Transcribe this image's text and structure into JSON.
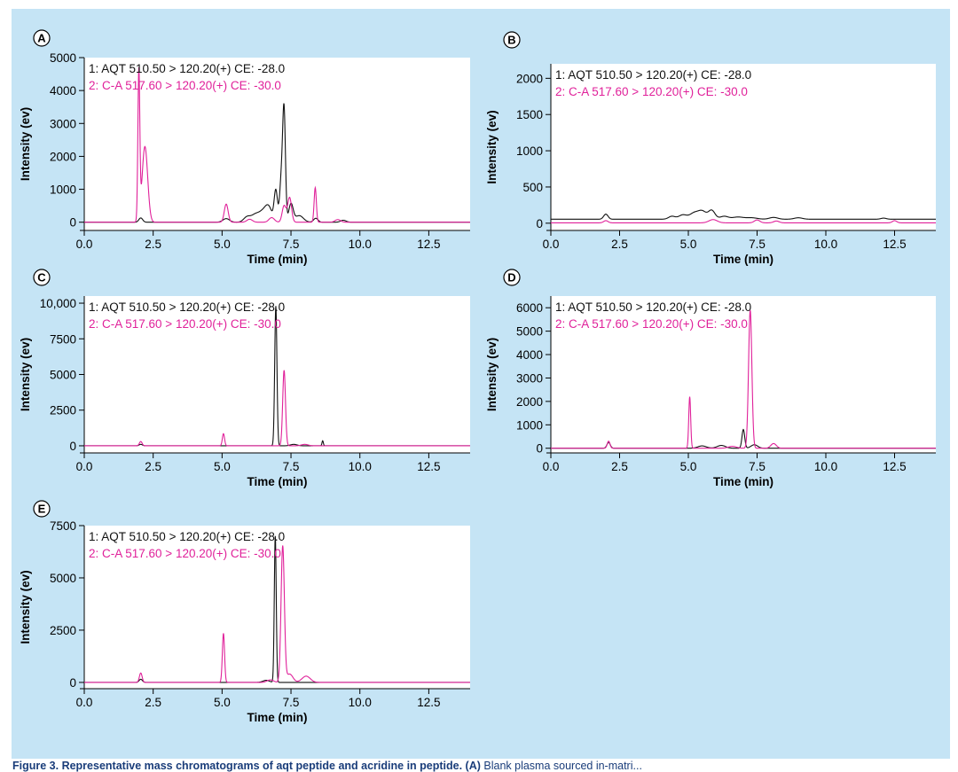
{
  "colors": {
    "background": "#c5e4f5",
    "plot_area": "#ffffff",
    "aqt_trace": "#111111",
    "ca_trace": "#e0219a",
    "caption": "#1a3d7a"
  },
  "caption": {
    "bold": "Figure 3. Representative mass chromatograms of aqt peptide and acridine in peptide. (A)",
    "rest": " Blank plasma sourced in-matri..."
  },
  "chart_data": [
    {
      "type": "line",
      "panel": "A",
      "xlabel": "Time (min)",
      "ylabel": "Intensity (ev)",
      "xlim": [
        0,
        14
      ],
      "ylim": [
        -250,
        5000
      ],
      "xticks": [
        0,
        2.5,
        5,
        7.5,
        10,
        12.5
      ],
      "xtick_labels": [
        "0.0",
        "2.5",
        "5.0",
        "7.5",
        "10.0",
        "12.5"
      ],
      "yticks": [
        0,
        1000,
        2000,
        3000,
        4000,
        5000
      ],
      "ytick_labels": [
        "0",
        "1000",
        "2000",
        "3000",
        "4000",
        "5000"
      ],
      "legend": [
        "1: AQT 510.50 > 120.20(+) CE: -28.0",
        "2: C-A 517.60 > 120.20(+) CE: -30.0"
      ],
      "series": [
        {
          "name": "AQT 510.50 > 120.20",
          "color": "#111111",
          "baseline": 0,
          "peaks": [
            [
              2.05,
              130,
              0.07
            ],
            [
              5.15,
              110,
              0.12
            ],
            [
              5.9,
              150,
              0.12
            ],
            [
              6.2,
              220,
              0.15
            ],
            [
              6.5,
              300,
              0.15
            ],
            [
              6.7,
              380,
              0.12
            ],
            [
              6.95,
              950,
              0.06
            ],
            [
              7.15,
              1300,
              0.06
            ],
            [
              7.25,
              3250,
              0.05
            ],
            [
              7.5,
              550,
              0.08
            ],
            [
              7.8,
              200,
              0.15
            ],
            [
              8.4,
              120,
              0.08
            ],
            [
              9.4,
              60,
              0.1
            ]
          ]
        },
        {
          "name": "C-A 517.60 > 120.20",
          "color": "#e0219a",
          "baseline": 0,
          "peaks": [
            [
              1.98,
              4500,
              0.035
            ],
            [
              2.2,
              2300,
              0.1
            ],
            [
              5.15,
              550,
              0.07
            ],
            [
              6.0,
              90,
              0.1
            ],
            [
              6.8,
              140,
              0.1
            ],
            [
              7.25,
              500,
              0.07
            ],
            [
              7.45,
              750,
              0.07
            ],
            [
              8.38,
              1050,
              0.04
            ],
            [
              9.2,
              80,
              0.1
            ]
          ]
        }
      ]
    },
    {
      "type": "line",
      "panel": "B",
      "xlabel": "Time (min)",
      "ylabel": "Intensity (ev)",
      "xlim": [
        0,
        14
      ],
      "ylim": [
        -100,
        2200
      ],
      "xticks": [
        0,
        2.5,
        5,
        7.5,
        10,
        12.5
      ],
      "xtick_labels": [
        "0.0",
        "2.5",
        "5.0",
        "7.5",
        "10.0",
        "12.5"
      ],
      "yticks": [
        0,
        500,
        1000,
        1500,
        2000
      ],
      "ytick_labels": [
        "0",
        "500",
        "1000",
        "1500",
        "2000"
      ],
      "legend": [
        "1: AQT 510.50 > 120.20(+) CE: -28.0",
        "2: C-A 517.60 > 120.20(+) CE: -30.0"
      ],
      "series": [
        {
          "name": "AQT 510.50 > 120.20",
          "color": "#111111",
          "baseline": 55,
          "peaks": [
            [
              2.0,
              70,
              0.08
            ],
            [
              4.4,
              40,
              0.12
            ],
            [
              4.8,
              60,
              0.15
            ],
            [
              5.2,
              80,
              0.15
            ],
            [
              5.5,
              110,
              0.15
            ],
            [
              5.85,
              120,
              0.12
            ],
            [
              6.3,
              40,
              0.15
            ],
            [
              6.8,
              30,
              0.2
            ],
            [
              7.3,
              20,
              0.2
            ],
            [
              8.1,
              25,
              0.15
            ],
            [
              9.0,
              20,
              0.15
            ],
            [
              12.1,
              15,
              0.1
            ]
          ]
        },
        {
          "name": "C-A 517.60 > 120.20",
          "color": "#e0219a",
          "baseline": 5,
          "peaks": [
            [
              2.0,
              30,
              0.08
            ],
            [
              5.9,
              45,
              0.15
            ],
            [
              7.5,
              40,
              0.1
            ],
            [
              8.2,
              25,
              0.1
            ],
            [
              12.5,
              30,
              0.08
            ]
          ]
        }
      ]
    },
    {
      "type": "line",
      "panel": "C",
      "xlabel": "Time (min)",
      "ylabel": "Intensity (ev)",
      "xlim": [
        0,
        14
      ],
      "ylim": [
        -500,
        10500
      ],
      "xticks": [
        0,
        2.5,
        5,
        7.5,
        10,
        12.5
      ],
      "xtick_labels": [
        "0.0",
        "2.5",
        "5.0",
        "7.5",
        "10.0",
        "12.5"
      ],
      "yticks": [
        0,
        2500,
        5000,
        7500,
        10000
      ],
      "ytick_labels": [
        "0",
        "2500",
        "5000",
        "7500",
        "10,000"
      ],
      "legend": [
        "1: AQT 510.50 > 120.20(+) CE: -28.0",
        "2: C-A 517.60 > 120.20(+) CE: -30.0"
      ],
      "series": [
        {
          "name": "AQT 510.50 > 120.20",
          "color": "#111111",
          "baseline": 0,
          "peaks": [
            [
              2.05,
              100,
              0.06
            ],
            [
              6.95,
              9800,
              0.04
            ],
            [
              7.6,
              100,
              0.12
            ],
            [
              8.65,
              350,
              0.025
            ]
          ]
        },
        {
          "name": "C-A 517.60 > 120.20",
          "color": "#e0219a",
          "baseline": 0,
          "peaks": [
            [
              2.05,
              300,
              0.05
            ],
            [
              5.05,
              850,
              0.04
            ],
            [
              7.25,
              5300,
              0.05
            ],
            [
              8.0,
              100,
              0.12
            ]
          ]
        }
      ]
    },
    {
      "type": "line",
      "panel": "D",
      "xlabel": "Time (min)",
      "ylabel": "Intensity (ev)",
      "xlim": [
        0,
        14
      ],
      "ylim": [
        -200,
        6500
      ],
      "xticks": [
        0,
        2.5,
        5,
        7.5,
        10,
        12.5
      ],
      "xtick_labels": [
        "0.0",
        "2.5",
        "5.0",
        "7.5",
        "10.0",
        "12.5"
      ],
      "yticks": [
        0,
        1000,
        2000,
        3000,
        4000,
        5000,
        6000
      ],
      "ytick_labels": [
        "0",
        "1000",
        "2000",
        "3000",
        "4000",
        "5000",
        "6000"
      ],
      "legend": [
        "1: AQT 510.50 > 120.20(+) CE: -28.0",
        "2: C-A 517.60 > 120.20(+) CE: -30.0"
      ],
      "series": [
        {
          "name": "AQT 510.50 > 120.20",
          "color": "#111111",
          "baseline": 0,
          "peaks": [
            [
              2.1,
              250,
              0.06
            ],
            [
              5.5,
              100,
              0.15
            ],
            [
              6.2,
              120,
              0.15
            ],
            [
              7.0,
              800,
              0.05
            ],
            [
              7.4,
              150,
              0.12
            ]
          ]
        },
        {
          "name": "C-A 517.60 > 120.20",
          "color": "#e0219a",
          "baseline": 0,
          "peaks": [
            [
              2.1,
              300,
              0.05
            ],
            [
              5.05,
              2200,
              0.035
            ],
            [
              6.6,
              80,
              0.15
            ],
            [
              7.25,
              5900,
              0.06
            ],
            [
              8.1,
              200,
              0.1
            ]
          ]
        }
      ]
    },
    {
      "type": "line",
      "panel": "E",
      "xlabel": "Time (min)",
      "ylabel": "Intensity (ev)",
      "xlim": [
        0,
        14
      ],
      "ylim": [
        -300,
        7500
      ],
      "xticks": [
        0,
        2.5,
        5,
        7.5,
        10,
        12.5
      ],
      "xtick_labels": [
        "0.0",
        "2.5",
        "5.0",
        "7.5",
        "10.0",
        "12.5"
      ],
      "yticks": [
        0,
        2500,
        5000,
        7500
      ],
      "ytick_labels": [
        "0",
        "2500",
        "5000",
        "7500"
      ],
      "legend": [
        "1: AQT 510.50 > 120.20(+) CE: -28.0",
        "2: C-A 517.60 > 120.20(+) CE: -30.0"
      ],
      "series": [
        {
          "name": "AQT 510.50 > 120.20",
          "color": "#111111",
          "baseline": 0,
          "peaks": [
            [
              2.05,
              150,
              0.06
            ],
            [
              6.93,
              7000,
              0.035
            ],
            [
              6.6,
              100,
              0.12
            ]
          ]
        },
        {
          "name": "C-A 517.60 > 120.20",
          "color": "#e0219a",
          "baseline": 0,
          "peaks": [
            [
              2.05,
              450,
              0.05
            ],
            [
              5.05,
              2350,
              0.04
            ],
            [
              6.75,
              120,
              0.12
            ],
            [
              7.2,
              6500,
              0.06
            ],
            [
              7.45,
              400,
              0.12
            ],
            [
              8.05,
              300,
              0.15
            ]
          ]
        }
      ]
    }
  ]
}
